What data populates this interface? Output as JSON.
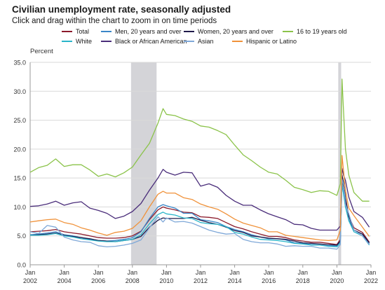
{
  "header": {
    "title": "Civilian unemployment rate, seasonally adjusted",
    "subtitle": "Click and drag within the chart to zoom in on time periods"
  },
  "chart_data": {
    "type": "line",
    "title": "Civilian unemployment rate, seasonally adjusted",
    "subtitle": "Click and drag within the chart to zoom in on time periods",
    "ylabel": "Percent",
    "xlabel": "",
    "ylim": [
      0,
      35
    ],
    "yticks": [
      "0.0",
      "5.0",
      "10.0",
      "15.0",
      "20.0",
      "25.0",
      "30.0",
      "35.0"
    ],
    "xticks": [
      {
        "value": 2002,
        "top": "Jan",
        "bottom": "2002"
      },
      {
        "value": 2004,
        "top": "Jan",
        "bottom": "2004"
      },
      {
        "value": 2006,
        "top": "Jan",
        "bottom": "2006"
      },
      {
        "value": 2008,
        "top": "Jan",
        "bottom": "2008"
      },
      {
        "value": 2010,
        "top": "Jan",
        "bottom": "2010"
      },
      {
        "value": 2012,
        "top": "Jan",
        "bottom": "2012"
      },
      {
        "value": 2014,
        "top": "Jan",
        "bottom": "2014"
      },
      {
        "value": 2016,
        "top": "Jan",
        "bottom": "2016"
      },
      {
        "value": 2018,
        "top": "Jan",
        "bottom": "2018"
      },
      {
        "value": 2020,
        "top": "Jan",
        "bottom": "2020"
      },
      {
        "value": 2022,
        "top": "Jan",
        "bottom": "2022"
      }
    ],
    "recessions": [
      [
        2007.92,
        2009.42
      ],
      [
        2020.08,
        2020.25
      ]
    ],
    "grid": true,
    "legend_position": "top",
    "series": [
      {
        "name": "Total",
        "color": "#8b1a2b",
        "x": [
          2002,
          2002.5,
          2003,
          2003.5,
          2004,
          2004.5,
          2005,
          2005.5,
          2006,
          2006.5,
          2007,
          2007.5,
          2008,
          2008.5,
          2009,
          2009.5,
          2009.8,
          2010,
          2010.5,
          2011,
          2011.5,
          2012,
          2012.5,
          2013,
          2013.5,
          2014,
          2014.5,
          2015,
          2015.5,
          2016,
          2016.5,
          2017,
          2017.5,
          2018,
          2018.5,
          2019,
          2019.5,
          2020,
          2020.2,
          2020.3,
          2020.4,
          2020.5,
          2020.7,
          2021,
          2021.5,
          2021.9
        ],
        "y": [
          5.7,
          5.8,
          5.9,
          6.1,
          5.7,
          5.5,
          5.3,
          5.0,
          4.7,
          4.6,
          4.6,
          4.7,
          5.0,
          5.8,
          7.8,
          9.5,
          10.0,
          9.8,
          9.5,
          9.1,
          9.0,
          8.3,
          8.2,
          8.0,
          7.3,
          6.6,
          6.2,
          5.7,
          5.3,
          4.9,
          4.9,
          4.7,
          4.3,
          4.1,
          3.9,
          3.9,
          3.7,
          3.5,
          4.4,
          14.7,
          13.3,
          11.1,
          8.4,
          6.4,
          5.6,
          3.9
        ]
      },
      {
        "name": "Men, 20 years and over",
        "color": "#3a86c8",
        "x": [
          2002,
          2002.5,
          2003,
          2003.5,
          2004,
          2004.5,
          2005,
          2005.5,
          2006,
          2006.5,
          2007,
          2007.5,
          2008,
          2008.5,
          2009,
          2009.5,
          2009.8,
          2010,
          2010.5,
          2011,
          2011.5,
          2012,
          2012.5,
          2013,
          2013.5,
          2014,
          2014.5,
          2015,
          2015.5,
          2016,
          2016.5,
          2017,
          2017.5,
          2018,
          2018.5,
          2019,
          2019.5,
          2020,
          2020.2,
          2020.3,
          2020.4,
          2020.5,
          2020.7,
          2021,
          2021.5,
          2021.9
        ],
        "y": [
          5.2,
          5.3,
          5.5,
          5.7,
          5.2,
          5.0,
          4.7,
          4.4,
          4.2,
          4.1,
          4.2,
          4.4,
          4.7,
          5.7,
          8.0,
          10.0,
          10.4,
          10.2,
          9.8,
          8.9,
          8.9,
          7.8,
          7.6,
          7.3,
          6.6,
          6.1,
          5.7,
          5.2,
          4.8,
          4.5,
          4.5,
          4.3,
          3.8,
          3.7,
          3.5,
          3.4,
          3.3,
          3.3,
          4.1,
          13.6,
          12.3,
          10.1,
          7.8,
          6.0,
          5.3,
          3.6
        ]
      },
      {
        "name": "Women, 20 years and over",
        "color": "#1f1a4a",
        "x": [
          2002,
          2002.5,
          2003,
          2003.5,
          2004,
          2004.5,
          2005,
          2005.5,
          2006,
          2006.5,
          2007,
          2007.5,
          2008,
          2008.5,
          2009,
          2009.5,
          2009.8,
          2010,
          2010.5,
          2011,
          2011.5,
          2012,
          2012.5,
          2013,
          2013.5,
          2014,
          2014.5,
          2015,
          2015.5,
          2016,
          2016.5,
          2017,
          2017.5,
          2018,
          2018.5,
          2019,
          2019.5,
          2020,
          2020.2,
          2020.3,
          2020.4,
          2020.5,
          2020.7,
          2021,
          2021.5,
          2021.9
        ],
        "y": [
          5.1,
          5.2,
          5.3,
          5.5,
          5.1,
          4.9,
          4.7,
          4.5,
          4.2,
          4.1,
          4.0,
          4.2,
          4.4,
          4.9,
          6.5,
          7.7,
          8.1,
          8.0,
          8.0,
          8.0,
          8.2,
          7.7,
          7.3,
          7.0,
          6.5,
          5.9,
          5.6,
          5.0,
          4.8,
          4.6,
          4.5,
          4.4,
          4.1,
          3.8,
          3.7,
          3.6,
          3.5,
          3.4,
          4.1,
          15.5,
          14.1,
          11.6,
          8.4,
          6.0,
          5.3,
          3.8
        ]
      },
      {
        "name": "16 to 19 years old",
        "color": "#8bc34a",
        "x": [
          2002,
          2002.5,
          2003,
          2003.5,
          2004,
          2004.5,
          2005,
          2005.5,
          2006,
          2006.5,
          2007,
          2007.5,
          2008,
          2008.5,
          2009,
          2009.5,
          2009.8,
          2010,
          2010.5,
          2011,
          2011.5,
          2012,
          2012.5,
          2013,
          2013.5,
          2014,
          2014.5,
          2015,
          2015.5,
          2016,
          2016.5,
          2017,
          2017.5,
          2018,
          2018.5,
          2019,
          2019.5,
          2020,
          2020.2,
          2020.3,
          2020.4,
          2020.5,
          2020.7,
          2021,
          2021.5,
          2021.9
        ],
        "y": [
          16.0,
          16.8,
          17.2,
          18.3,
          17.0,
          17.3,
          17.3,
          16.4,
          15.3,
          15.7,
          15.2,
          15.9,
          16.9,
          19.0,
          21.0,
          24.5,
          27.0,
          26.0,
          25.8,
          25.2,
          24.8,
          24.0,
          23.8,
          23.2,
          22.5,
          20.7,
          19.0,
          18.0,
          16.9,
          16.0,
          15.7,
          14.6,
          13.4,
          13.0,
          12.5,
          12.8,
          12.7,
          12.0,
          14.0,
          32.1,
          26.0,
          20.0,
          15.5,
          12.5,
          11.0,
          11.0
        ]
      },
      {
        "name": "White",
        "color": "#2ab5c9",
        "x": [
          2002,
          2002.5,
          2003,
          2003.5,
          2004,
          2004.5,
          2005,
          2005.5,
          2006,
          2006.5,
          2007,
          2007.5,
          2008,
          2008.5,
          2009,
          2009.5,
          2009.8,
          2010,
          2010.5,
          2011,
          2011.5,
          2012,
          2012.5,
          2013,
          2013.5,
          2014,
          2014.5,
          2015,
          2015.5,
          2016,
          2016.5,
          2017,
          2017.5,
          2018,
          2018.5,
          2019,
          2019.5,
          2020,
          2020.2,
          2020.3,
          2020.4,
          2020.5,
          2020.7,
          2021,
          2021.5,
          2021.9
        ],
        "y": [
          5.1,
          5.1,
          5.2,
          5.4,
          5.0,
          4.8,
          4.5,
          4.3,
          4.1,
          4.0,
          4.0,
          4.2,
          4.4,
          5.2,
          7.1,
          8.7,
          9.1,
          8.8,
          8.6,
          8.1,
          8.0,
          7.3,
          7.1,
          7.0,
          6.6,
          5.6,
          5.3,
          4.8,
          4.4,
          4.3,
          4.2,
          4.0,
          3.7,
          3.6,
          3.4,
          3.4,
          3.2,
          3.1,
          3.8,
          14.2,
          12.0,
          10.0,
          7.6,
          5.7,
          5.0,
          3.4
        ]
      },
      {
        "name": "Black or African American",
        "color": "#4a2d7a",
        "x": [
          2002,
          2002.5,
          2003,
          2003.5,
          2004,
          2004.5,
          2005,
          2005.5,
          2006,
          2006.5,
          2007,
          2007.5,
          2008,
          2008.5,
          2009,
          2009.5,
          2009.8,
          2010,
          2010.5,
          2011,
          2011.5,
          2012,
          2012.5,
          2013,
          2013.5,
          2014,
          2014.5,
          2015,
          2015.5,
          2016,
          2016.5,
          2017,
          2017.5,
          2018,
          2018.5,
          2019,
          2019.5,
          2020,
          2020.2,
          2020.3,
          2020.4,
          2020.5,
          2020.7,
          2021,
          2021.5,
          2021.9
        ],
        "y": [
          10.1,
          10.2,
          10.5,
          11.0,
          10.3,
          10.7,
          10.9,
          9.8,
          9.4,
          8.9,
          8.0,
          8.4,
          9.2,
          10.6,
          12.9,
          15.0,
          16.5,
          16.0,
          15.5,
          16.0,
          15.9,
          13.6,
          14.0,
          13.4,
          12.0,
          11.0,
          10.3,
          10.3,
          9.5,
          8.8,
          8.3,
          7.8,
          7.0,
          6.9,
          6.3,
          6.0,
          6.0,
          6.0,
          6.7,
          16.7,
          15.4,
          14.6,
          11.7,
          9.2,
          8.2,
          6.5
        ]
      },
      {
        "name": "Asian",
        "color": "#7fa8d8",
        "x": [
          2002,
          2002.5,
          2003,
          2003.5,
          2004,
          2004.5,
          2005,
          2005.5,
          2006,
          2006.5,
          2007,
          2007.5,
          2008,
          2008.5,
          2009,
          2009.5,
          2009.8,
          2010,
          2010.5,
          2011,
          2011.5,
          2012,
          2012.5,
          2013,
          2013.5,
          2014,
          2014.5,
          2015,
          2015.5,
          2016,
          2016.5,
          2017,
          2017.5,
          2018,
          2018.5,
          2019,
          2019.5,
          2020,
          2020.2,
          2020.3,
          2020.4,
          2020.5,
          2020.7,
          2021,
          2021.5,
          2021.9
        ],
        "y": [
          5.7,
          5.4,
          6.8,
          6.5,
          4.8,
          4.3,
          4.0,
          3.9,
          3.3,
          3.1,
          3.2,
          3.4,
          3.7,
          4.3,
          6.4,
          8.3,
          7.4,
          8.1,
          7.4,
          7.5,
          7.2,
          6.6,
          6.0,
          5.6,
          5.3,
          5.4,
          4.4,
          4.0,
          3.8,
          3.8,
          3.6,
          3.2,
          3.3,
          3.2,
          3.2,
          2.9,
          2.9,
          2.7,
          3.5,
          14.8,
          13.8,
          10.5,
          8.8,
          6.0,
          5.0,
          3.5
        ]
      },
      {
        "name": "Hispanic or Latino",
        "color": "#f0923a",
        "x": [
          2002,
          2002.5,
          2003,
          2003.5,
          2004,
          2004.5,
          2005,
          2005.5,
          2006,
          2006.5,
          2007,
          2007.5,
          2008,
          2008.5,
          2009,
          2009.5,
          2009.8,
          2010,
          2010.5,
          2011,
          2011.5,
          2012,
          2012.5,
          2013,
          2013.5,
          2014,
          2014.5,
          2015,
          2015.5,
          2016,
          2016.5,
          2017,
          2017.5,
          2018,
          2018.5,
          2019,
          2019.5,
          2020,
          2020.2,
          2020.3,
          2020.4,
          2020.5,
          2020.7,
          2021,
          2021.5,
          2021.9
        ],
        "y": [
          7.4,
          7.6,
          7.8,
          7.9,
          7.3,
          7.0,
          6.4,
          6.0,
          5.5,
          5.1,
          5.6,
          5.8,
          6.3,
          7.6,
          10.0,
          12.2,
          12.7,
          12.4,
          12.4,
          11.6,
          11.3,
          10.5,
          10.0,
          9.6,
          8.8,
          7.9,
          7.2,
          6.8,
          6.4,
          5.7,
          5.7,
          5.1,
          4.9,
          4.7,
          4.5,
          4.3,
          4.2,
          4.3,
          6.0,
          18.9,
          16.0,
          12.9,
          9.8,
          8.5,
          6.5,
          4.9
        ]
      }
    ]
  }
}
